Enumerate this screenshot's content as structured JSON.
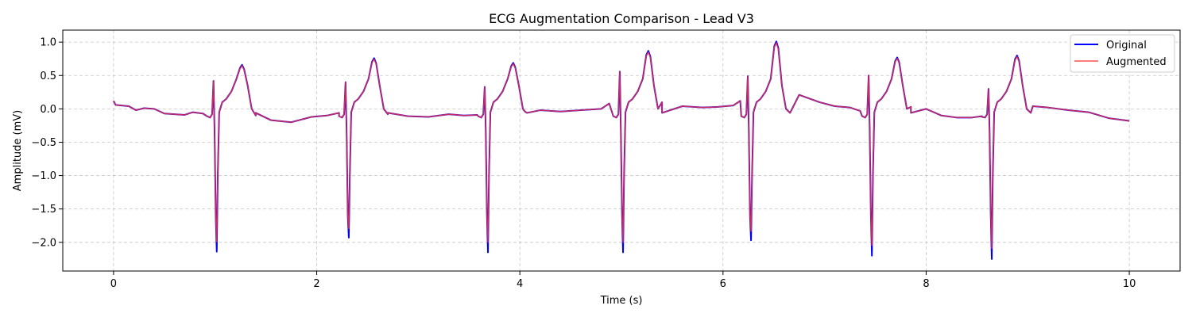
{
  "chart_data": {
    "type": "line",
    "title": "ECG Augmentation Comparison - Lead V3",
    "xlabel": "Time (s)",
    "ylabel": "Amplitude (mV)",
    "xlim": [
      -0.5,
      10.5
    ],
    "ylim": [
      -2.43,
      1.18
    ],
    "xticks": [
      0,
      2,
      4,
      6,
      8,
      10
    ],
    "yticks": [
      -2.0,
      -1.5,
      -1.0,
      -0.5,
      0.0,
      0.5,
      1.0
    ],
    "ytick_labels": [
      "−2.0",
      "−1.5",
      "−1.0",
      "−0.5",
      "0.0",
      "0.5",
      "1.0"
    ],
    "grid": true,
    "legend_position": "top-right",
    "beats": [
      {
        "r_time": 0.99,
        "r_peak": 0.42,
        "s_depth": -2.14,
        "t_peak": 0.66
      },
      {
        "r_time": 2.29,
        "r_peak": 0.4,
        "s_depth": -1.93,
        "t_peak": 0.76
      },
      {
        "r_time": 3.66,
        "r_peak": 0.33,
        "s_depth": -2.15,
        "t_peak": 0.69
      },
      {
        "r_time": 4.99,
        "r_peak": 0.56,
        "s_depth": -2.15,
        "t_peak": 0.87
      },
      {
        "r_time": 6.25,
        "r_peak": 0.49,
        "s_depth": -1.97,
        "t_peak": 1.01
      },
      {
        "r_time": 7.44,
        "r_peak": 0.5,
        "s_depth": -2.2,
        "t_peak": 0.77
      },
      {
        "r_time": 8.62,
        "r_peak": 0.3,
        "s_depth": -2.25,
        "t_peak": 0.8
      }
    ],
    "baseline": [
      [
        0.0,
        0.12
      ],
      [
        0.02,
        0.06
      ],
      [
        0.15,
        0.04
      ],
      [
        0.22,
        -0.02
      ],
      [
        0.3,
        0.01
      ],
      [
        0.4,
        0.0
      ],
      [
        0.5,
        -0.07
      ],
      [
        0.6,
        -0.08
      ],
      [
        0.7,
        -0.09
      ],
      [
        0.78,
        -0.05
      ],
      [
        0.88,
        -0.07
      ],
      [
        1.4,
        -0.1
      ],
      [
        1.55,
        -0.17
      ],
      [
        1.75,
        -0.2
      ],
      [
        1.95,
        -0.12
      ],
      [
        2.1,
        -0.1
      ],
      [
        2.22,
        -0.06
      ],
      [
        2.7,
        -0.08
      ],
      [
        2.9,
        -0.11
      ],
      [
        3.1,
        -0.12
      ],
      [
        3.3,
        -0.08
      ],
      [
        3.45,
        -0.1
      ],
      [
        3.58,
        -0.09
      ],
      [
        4.05,
        -0.04
      ],
      [
        4.2,
        -0.02
      ],
      [
        4.4,
        -0.04
      ],
      [
        4.6,
        -0.02
      ],
      [
        4.8,
        0.0
      ],
      [
        4.88,
        0.08
      ],
      [
        5.4,
        0.1
      ],
      [
        5.6,
        0.04
      ],
      [
        5.8,
        0.02
      ],
      [
        5.95,
        0.03
      ],
      [
        6.1,
        0.05
      ],
      [
        6.17,
        0.12
      ],
      [
        6.75,
        0.21
      ],
      [
        6.95,
        0.1
      ],
      [
        7.1,
        0.04
      ],
      [
        7.25,
        0.02
      ],
      [
        7.35,
        -0.03
      ],
      [
        7.85,
        0.03
      ],
      [
        8.0,
        0.0
      ],
      [
        8.15,
        -0.1
      ],
      [
        8.3,
        -0.13
      ],
      [
        8.45,
        -0.13
      ],
      [
        8.55,
        -0.12
      ],
      [
        9.05,
        0.04
      ],
      [
        9.2,
        0.02
      ],
      [
        9.4,
        -0.02
      ],
      [
        9.6,
        -0.05
      ],
      [
        9.8,
        -0.14
      ],
      [
        10.0,
        -0.18
      ]
    ],
    "series": [
      {
        "name": "Original",
        "color": "#0000ff",
        "s_scale": 1.0,
        "t_scale": 1.0
      },
      {
        "name": "Augmented",
        "color": "#ff3333",
        "s_scale": 0.93,
        "t_scale": 0.98
      }
    ]
  },
  "legend": {
    "original_label": "Original",
    "augmented_label": "Augmented"
  }
}
